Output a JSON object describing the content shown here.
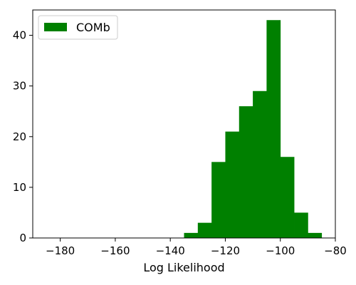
{
  "chart_data": {
    "type": "bar",
    "title": "",
    "xlabel": "Log Likelihood",
    "ylabel": "",
    "xlim": [
      -190,
      -80
    ],
    "ylim": [
      0,
      45
    ],
    "grid": false,
    "legend_position": "top-left",
    "x_ticks": [
      -180,
      -160,
      -140,
      -120,
      -100,
      -80
    ],
    "x_tick_labels": [
      "−180",
      "−160",
      "−140",
      "−120",
      "−100",
      "−80"
    ],
    "y_ticks": [
      0,
      10,
      20,
      30,
      40
    ],
    "y_tick_labels": [
      "0",
      "10",
      "20",
      "30",
      "40"
    ],
    "series": [
      {
        "name": "COMb",
        "color": "#008000",
        "bins": [
          {
            "start": -135,
            "end": -130,
            "count": 1
          },
          {
            "start": -130,
            "end": -125,
            "count": 3
          },
          {
            "start": -125,
            "end": -120,
            "count": 15
          },
          {
            "start": -120,
            "end": -115,
            "count": 21
          },
          {
            "start": -115,
            "end": -110,
            "count": 26
          },
          {
            "start": -110,
            "end": -105,
            "count": 29
          },
          {
            "start": -105,
            "end": -100,
            "count": 43
          },
          {
            "start": -100,
            "end": -95,
            "count": 16
          },
          {
            "start": -95,
            "end": -90,
            "count": 5
          },
          {
            "start": -90,
            "end": -85,
            "count": 1
          }
        ]
      }
    ]
  }
}
